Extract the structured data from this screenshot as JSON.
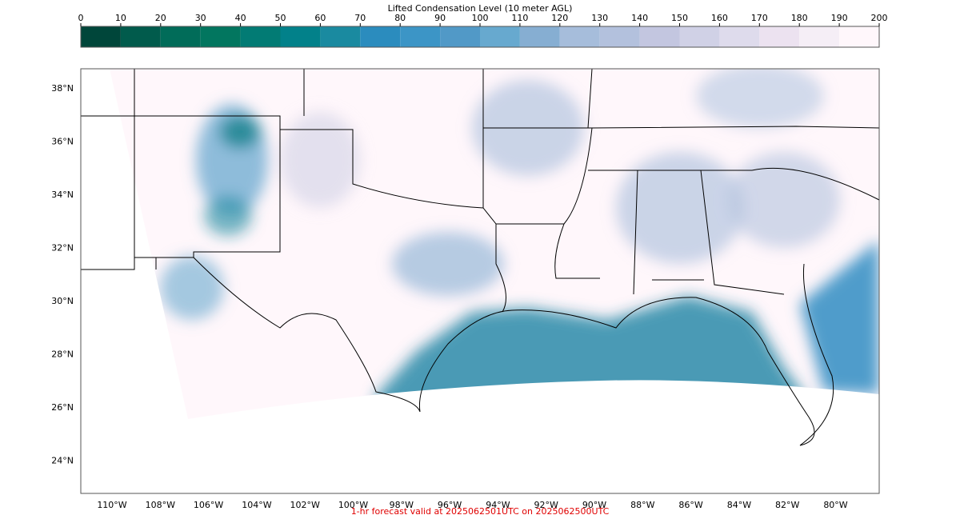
{
  "colorbar": {
    "title": "Lifted Condensation Level (10 meter AGL)",
    "ticks": [
      0,
      10,
      20,
      30,
      40,
      50,
      60,
      70,
      80,
      90,
      100,
      110,
      120,
      130,
      140,
      150,
      160,
      170,
      180,
      190,
      200
    ],
    "colors": [
      "#00463a",
      "#015b4c",
      "#016c59",
      "#02765f",
      "#027b74",
      "#02818a",
      "#1a8aa0",
      "#2b8cbe",
      "#3c95c6",
      "#5199c7",
      "#67a9cf",
      "#86aed2",
      "#a6bddb",
      "#b3c1dd",
      "#c3c6e0",
      "#d0d1e6",
      "#dedbec",
      "#ece2f0",
      "#f5eef6",
      "#fff7fb"
    ]
  },
  "map": {
    "lat_labels": [
      "38°N",
      "36°N",
      "34°N",
      "32°N",
      "30°N",
      "28°N",
      "26°N",
      "24°N"
    ],
    "lon_labels": [
      "110°W",
      "108°W",
      "106°W",
      "104°W",
      "102°W",
      "100°W",
      "98°W",
      "96°W",
      "94°W",
      "92°W",
      "90°W",
      "88°W",
      "86°W",
      "84°W",
      "82°W",
      "80°W"
    ]
  },
  "footer": "1-hr forecast valid at 2025062501UTC on 2025062500UTC"
}
